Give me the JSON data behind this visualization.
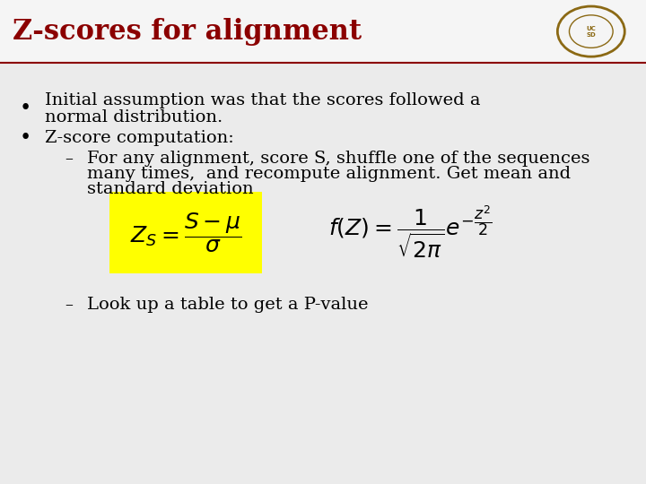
{
  "title": "Z-scores for alignment",
  "title_color": "#8B0000",
  "title_fontsize": 22,
  "bg_color": "#EBEBEB",
  "line_color": "#8B0000",
  "sub1_line1": "For any alignment, score S, shuffle one of the sequences",
  "sub1_line2": "many times,  and recompute alignment. Get mean and",
  "sub1_line3": "standard deviation",
  "formula1": "$Z_S = \\dfrac{S-\\mu}{\\sigma}$",
  "formula2": "$f(Z) = \\dfrac{1}{\\sqrt{2\\pi}}e^{-\\dfrac{z^2}{2}}$",
  "sub2": "Look up a table to get a P-value",
  "formula_bg": "#FFFF00",
  "text_color": "#000000",
  "body_fontsize": 14
}
